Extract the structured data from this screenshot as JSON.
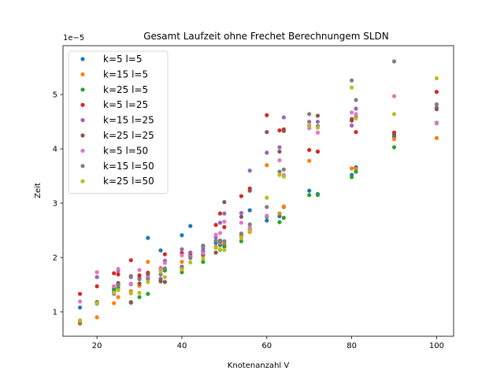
{
  "chart_data": {
    "type": "scatter",
    "title": "Gesamt Laufzeit ohne Frechet Berechnungem SLDN",
    "xlabel": "Knotenanzahl V",
    "ylabel": "Zeit",
    "y_scale_label": "1e−5",
    "xlim": [
      12,
      104
    ],
    "ylim": [
      0.55,
      5.9
    ],
    "xticks": [
      20,
      40,
      60,
      80,
      100
    ],
    "yticks": [
      1,
      2,
      3,
      4,
      5
    ],
    "legend_position": "upper-left",
    "grid": false,
    "series": [
      {
        "name": "k=5 l=5",
        "color": "#1f77b4",
        "points": [
          [
            16,
            1.08
          ],
          [
            20,
            1.17
          ],
          [
            24,
            1.42
          ],
          [
            25,
            1.52
          ],
          [
            28,
            1.51
          ],
          [
            30,
            1.62
          ],
          [
            32,
            2.36
          ],
          [
            35,
            2.13
          ],
          [
            36,
            1.78
          ],
          [
            40,
            2.41
          ],
          [
            42,
            2.58
          ],
          [
            45,
            2.11
          ],
          [
            48,
            2.27
          ],
          [
            49,
            2.23
          ],
          [
            50,
            2.23
          ],
          [
            54,
            2.43
          ],
          [
            56,
            2.87
          ],
          [
            60,
            2.68
          ],
          [
            63,
            2.76
          ],
          [
            64,
            2.93
          ],
          [
            70,
            3.23
          ],
          [
            72,
            3.17
          ],
          [
            80,
            3.52
          ],
          [
            81,
            3.66
          ],
          [
            90,
            4.22
          ],
          [
            100,
            4.48
          ]
        ]
      },
      {
        "name": "k=15 l=5",
        "color": "#ff7f0e",
        "points": [
          [
            16,
            0.78
          ],
          [
            20,
            0.9
          ],
          [
            24,
            1.16
          ],
          [
            25,
            1.27
          ],
          [
            28,
            1.38
          ],
          [
            30,
            1.48
          ],
          [
            32,
            1.92
          ],
          [
            35,
            1.8
          ],
          [
            36,
            1.76
          ],
          [
            40,
            1.92
          ],
          [
            42,
            2.07
          ],
          [
            45,
            2.04
          ],
          [
            48,
            2.2
          ],
          [
            49,
            2.27
          ],
          [
            50,
            2.27
          ],
          [
            54,
            2.4
          ],
          [
            56,
            2.47
          ],
          [
            60,
            3.7
          ],
          [
            63,
            2.81
          ],
          [
            64,
            2.94
          ],
          [
            70,
            3.78
          ],
          [
            72,
            3.95
          ],
          [
            80,
            3.64
          ],
          [
            81,
            3.63
          ],
          [
            90,
            4.18
          ],
          [
            100,
            4.2
          ]
        ]
      },
      {
        "name": "k=25 l=5",
        "color": "#2ca02c",
        "points": [
          [
            16,
            0.84
          ],
          [
            20,
            1.16
          ],
          [
            24,
            1.4
          ],
          [
            25,
            1.44
          ],
          [
            28,
            1.18
          ],
          [
            30,
            1.27
          ],
          [
            32,
            1.33
          ],
          [
            35,
            1.56
          ],
          [
            36,
            1.76
          ],
          [
            40,
            1.73
          ],
          [
            42,
            2.02
          ],
          [
            45,
            1.92
          ],
          [
            48,
            2.18
          ],
          [
            49,
            2.14
          ],
          [
            50,
            2.2
          ],
          [
            54,
            2.3
          ],
          [
            56,
            2.52
          ],
          [
            60,
            2.75
          ],
          [
            63,
            2.65
          ],
          [
            64,
            2.73
          ],
          [
            70,
            3.15
          ],
          [
            72,
            3.15
          ],
          [
            80,
            3.48
          ],
          [
            81,
            3.58
          ],
          [
            90,
            4.03
          ],
          [
            100,
            4.47
          ]
        ]
      },
      {
        "name": "k=5 l=25",
        "color": "#d62728",
        "points": [
          [
            16,
            1.33
          ],
          [
            20,
            1.47
          ],
          [
            24,
            1.71
          ],
          [
            25,
            1.69
          ],
          [
            28,
            1.95
          ],
          [
            30,
            1.67
          ],
          [
            32,
            1.72
          ],
          [
            35,
            1.8
          ],
          [
            36,
            2.06
          ],
          [
            40,
            2.08
          ],
          [
            42,
            2.09
          ],
          [
            45,
            2.21
          ],
          [
            48,
            2.6
          ],
          [
            49,
            2.81
          ],
          [
            50,
            2.56
          ],
          [
            54,
            3.13
          ],
          [
            56,
            3.27
          ],
          [
            60,
            4.62
          ],
          [
            63,
            4.34
          ],
          [
            64,
            4.36
          ],
          [
            70,
            3.98
          ],
          [
            72,
            3.95
          ],
          [
            80,
            4.52
          ],
          [
            81,
            4.31
          ],
          [
            90,
            4.3
          ],
          [
            100,
            5.05
          ]
        ]
      },
      {
        "name": "k=15 l=25",
        "color": "#9467bd",
        "points": [
          [
            16,
            0.84
          ],
          [
            20,
            1.64
          ],
          [
            24,
            1.33
          ],
          [
            25,
            1.76
          ],
          [
            28,
            1.64
          ],
          [
            30,
            1.6
          ],
          [
            32,
            1.65
          ],
          [
            35,
            1.61
          ],
          [
            36,
            1.94
          ],
          [
            40,
            2.15
          ],
          [
            42,
            2.09
          ],
          [
            45,
            2.16
          ],
          [
            48,
            2.37
          ],
          [
            49,
            2.64
          ],
          [
            50,
            2.81
          ],
          [
            54,
            2.82
          ],
          [
            56,
            3.6
          ],
          [
            60,
            3.93
          ],
          [
            63,
            4.03
          ],
          [
            64,
            4.58
          ],
          [
            70,
            4.5
          ],
          [
            72,
            4.5
          ],
          [
            80,
            4.43
          ],
          [
            81,
            4.74
          ],
          [
            90,
            4.26
          ],
          [
            100,
            4.76
          ]
        ]
      },
      {
        "name": "k=25 l=25",
        "color": "#8c564b",
        "points": [
          [
            16,
            0.8
          ],
          [
            20,
            1.18
          ],
          [
            24,
            1.47
          ],
          [
            25,
            1.53
          ],
          [
            28,
            1.17
          ],
          [
            30,
            1.52
          ],
          [
            32,
            1.7
          ],
          [
            35,
            1.57
          ],
          [
            36,
            1.55
          ],
          [
            40,
            1.83
          ],
          [
            42,
            2.03
          ],
          [
            45,
            2.05
          ],
          [
            48,
            2.09
          ],
          [
            49,
            2.31
          ],
          [
            50,
            3.02
          ],
          [
            54,
            2.75
          ],
          [
            56,
            3.23
          ],
          [
            60,
            4.31
          ],
          [
            63,
            3.95
          ],
          [
            64,
            4.33
          ],
          [
            70,
            4.43
          ],
          [
            72,
            4.61
          ],
          [
            80,
            4.55
          ],
          [
            81,
            4.58
          ],
          [
            90,
            4.26
          ],
          [
            100,
            4.73
          ]
        ]
      },
      {
        "name": "k=5 l=50",
        "color": "#e377c2",
        "points": [
          [
            16,
            1.19
          ],
          [
            20,
            1.73
          ],
          [
            24,
            1.47
          ],
          [
            25,
            1.79
          ],
          [
            28,
            1.52
          ],
          [
            30,
            1.77
          ],
          [
            32,
            1.63
          ],
          [
            35,
            1.79
          ],
          [
            36,
            1.9
          ],
          [
            40,
            2.04
          ],
          [
            42,
            2.01
          ],
          [
            45,
            2.08
          ],
          [
            48,
            2.42
          ],
          [
            49,
            2.45
          ],
          [
            50,
            2.66
          ],
          [
            54,
            2.64
          ],
          [
            56,
            2.55
          ],
          [
            60,
            2.77
          ],
          [
            63,
            3.79
          ],
          [
            64,
            3.52
          ],
          [
            70,
            4.38
          ],
          [
            72,
            4.3
          ],
          [
            80,
            4.67
          ],
          [
            81,
            4.64
          ],
          [
            90,
            4.97
          ],
          [
            100,
            4.47
          ]
        ]
      },
      {
        "name": "k=15 l=50",
        "color": "#7f7f7f",
        "points": [
          [
            16,
            0.81
          ],
          [
            20,
            1.15
          ],
          [
            24,
            1.36
          ],
          [
            25,
            1.49
          ],
          [
            28,
            1.66
          ],
          [
            30,
            1.6
          ],
          [
            32,
            1.6
          ],
          [
            35,
            1.69
          ],
          [
            36,
            1.8
          ],
          [
            40,
            1.81
          ],
          [
            42,
            1.99
          ],
          [
            45,
            2.22
          ],
          [
            48,
            2.31
          ],
          [
            49,
            2.29
          ],
          [
            50,
            2.3
          ],
          [
            54,
            2.44
          ],
          [
            56,
            2.61
          ],
          [
            60,
            2.93
          ],
          [
            63,
            3.58
          ],
          [
            64,
            3.62
          ],
          [
            70,
            4.64
          ],
          [
            72,
            4.42
          ],
          [
            80,
            5.26
          ],
          [
            81,
            4.9
          ],
          [
            90,
            5.61
          ],
          [
            100,
            4.82
          ]
        ]
      },
      {
        "name": "k=25 l=50",
        "color": "#bcbd22",
        "points": [
          [
            16,
            0.84
          ],
          [
            20,
            1.16
          ],
          [
            24,
            1.35
          ],
          [
            25,
            1.4
          ],
          [
            28,
            1.34
          ],
          [
            30,
            1.35
          ],
          [
            32,
            1.55
          ],
          [
            35,
            1.74
          ],
          [
            36,
            1.64
          ],
          [
            40,
            1.78
          ],
          [
            42,
            1.91
          ],
          [
            45,
            1.98
          ],
          [
            48,
            2.18
          ],
          [
            49,
            2.15
          ],
          [
            50,
            2.14
          ],
          [
            54,
            2.36
          ],
          [
            56,
            2.49
          ],
          [
            60,
            3.1
          ],
          [
            63,
            3.52
          ],
          [
            64,
            3.49
          ],
          [
            70,
            4.44
          ],
          [
            72,
            4.39
          ],
          [
            80,
            5.13
          ],
          [
            81,
            4.56
          ],
          [
            90,
            4.64
          ],
          [
            100,
            5.3
          ]
        ]
      }
    ]
  }
}
